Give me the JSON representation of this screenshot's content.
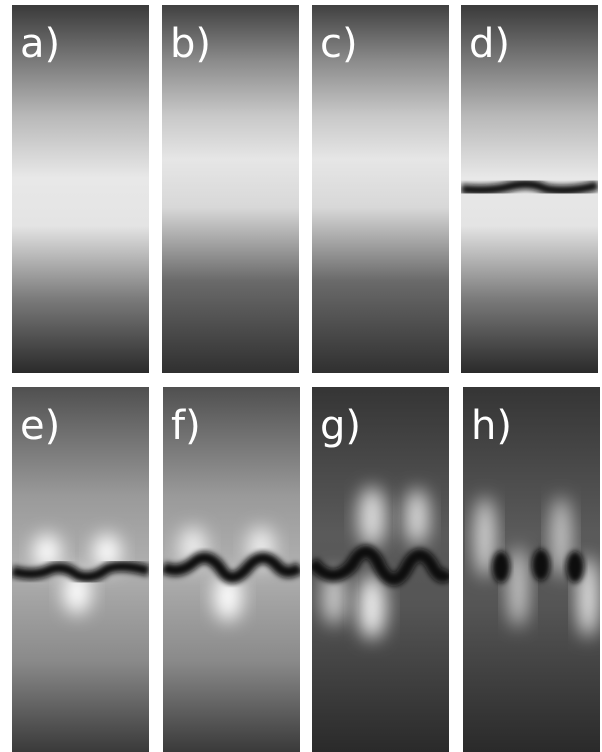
{
  "panels": [
    {
      "label": "a)"
    },
    {
      "label": "b)"
    },
    {
      "label": "c)"
    },
    {
      "label": "d)"
    },
    {
      "label": "e)"
    },
    {
      "label": "f)"
    },
    {
      "label": "g)"
    },
    {
      "label": "h)"
    }
  ]
}
